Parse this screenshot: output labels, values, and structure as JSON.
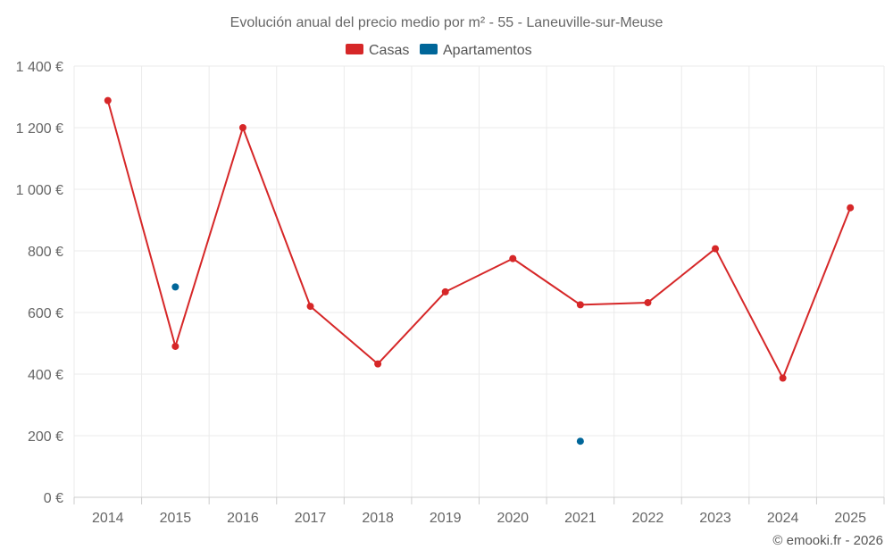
{
  "chart_data": {
    "type": "line",
    "title": "Evolución anual del precio medio por m² - 55 - Laneuville-sur-Meuse",
    "categories": [
      "2014",
      "2015",
      "2016",
      "2017",
      "2018",
      "2019",
      "2020",
      "2021",
      "2022",
      "2023",
      "2024",
      "2025"
    ],
    "ylim": [
      0,
      1400
    ],
    "yticks": [
      0,
      200,
      400,
      600,
      800,
      1000,
      1200,
      1400
    ],
    "ytick_labels": [
      "0 €",
      "200 €",
      "400 €",
      "600 €",
      "800 €",
      "1 000 €",
      "1 200 €",
      "1 400 €"
    ],
    "series": [
      {
        "name": "Casas",
        "color": "#d62728",
        "style": "line",
        "values": [
          1288,
          490,
          1200,
          620,
          433,
          667,
          775,
          625,
          632,
          807,
          387,
          940
        ]
      },
      {
        "name": "Apartamentos",
        "color": "#006699",
        "style": "points",
        "values": [
          null,
          683,
          null,
          null,
          null,
          null,
          null,
          182,
          null,
          null,
          null,
          null
        ]
      }
    ],
    "legend_position": "top-center",
    "credit": "© emooki.fr - 2026"
  }
}
